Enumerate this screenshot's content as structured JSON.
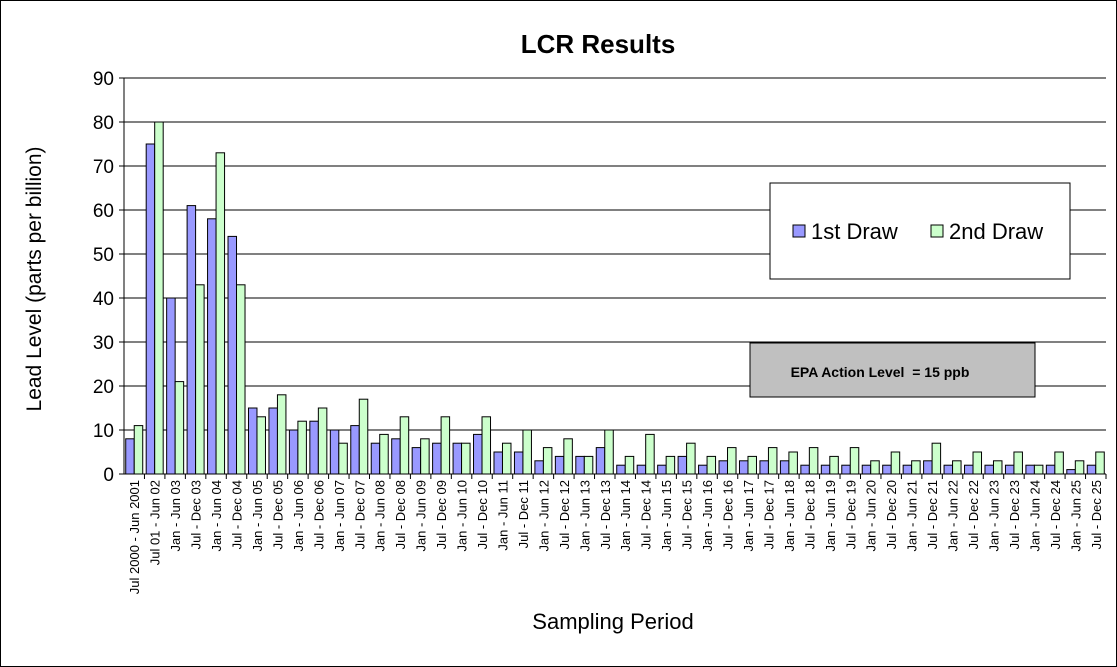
{
  "chart_data": {
    "type": "bar",
    "title": "LCR Results",
    "xlabel": "Sampling Period",
    "ylabel": "Lead Level (parts per billion)",
    "ylim": [
      0,
      90
    ],
    "yticks": [
      0,
      10,
      20,
      30,
      40,
      50,
      60,
      70,
      80,
      90
    ],
    "grid": true,
    "legend_position": "top-right",
    "categories": [
      "Jul 2000 - Jun 2001",
      "Jul 01 - Jun 02",
      "Jan - Jun 03",
      "Jul - Dec 03",
      "Jan - Jun 04",
      "Jul - Dec 04",
      "Jan - Jun 05",
      "Jul - Dec 05",
      "Jan - Jun 06",
      "Jul - Dec 06",
      "Jan - Jun 07",
      "Jul - Dec 07",
      "Jan - Jun 08",
      "Jul - Dec 08",
      "Jan - Jun 09",
      "Jul - Dec 09",
      "Jan - Jun 10",
      "Jul - Dec 10",
      "Jan - Jun 11",
      "Jul - Dec 11",
      "Jan - Jun 12",
      "Jul - Dec 12",
      "Jan - Jun 13",
      "Jul - Dec 13",
      "Jan - Jun 14",
      "Jul - Dec 14",
      "Jan - Jun 15",
      "Jul - Dec 15",
      "Jan - Jun 16",
      "Jul - Dec 16",
      "Jan - Jun 17",
      "Jul - Dec 17",
      "Jan - Jun 18",
      "Jul - Dec 18",
      "Jan - Jun 19",
      "Jul - Dec 19",
      "Jan - Jun 20",
      "Jul - Dec 20",
      "Jan - Jun 21",
      "Jul - Dec 21",
      "Jan - Jun 22",
      "Jul - Dec 22",
      "Jan - Jun 23",
      "Jul - Dec 23",
      "Jan - Jun 24",
      "Jul - Dec 24",
      "Jan - Jun 25",
      "Jul - Dec 25"
    ],
    "series": [
      {
        "name": "1st Draw",
        "color": "#9999FF",
        "values": [
          8,
          75,
          40,
          61,
          58,
          54,
          15,
          15,
          10,
          12,
          10,
          11,
          7,
          8,
          6,
          7,
          7,
          9,
          5,
          5,
          3,
          4,
          4,
          6,
          2,
          2,
          2,
          4,
          2,
          3,
          3,
          3,
          3,
          2,
          2,
          2,
          2,
          2,
          2,
          3,
          2,
          2,
          2,
          2,
          2,
          2,
          1,
          2
        ]
      },
      {
        "name": "2nd Draw",
        "color": "#CCFFCC",
        "values": [
          11,
          80,
          21,
          43,
          73,
          43,
          13,
          18,
          12,
          15,
          7,
          17,
          9,
          13,
          8,
          13,
          7,
          13,
          7,
          10,
          6,
          8,
          4,
          10,
          4,
          9,
          4,
          7,
          4,
          6,
          4,
          6,
          5,
          6,
          4,
          6,
          3,
          5,
          3,
          7,
          3,
          5,
          3,
          5,
          2,
          5,
          3,
          5
        ]
      }
    ],
    "annotation": "EPA Action Level  = 15 ppb"
  }
}
